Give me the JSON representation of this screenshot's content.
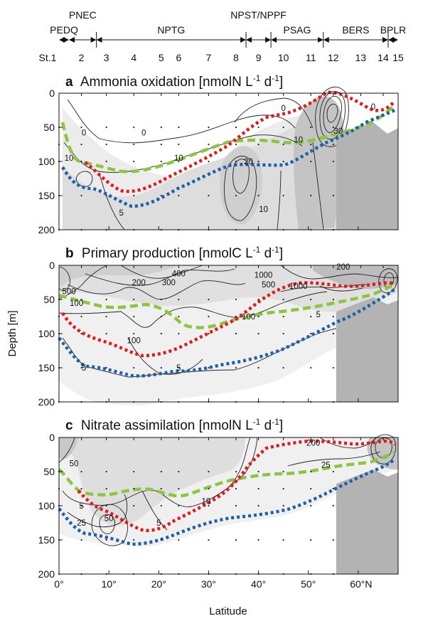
{
  "provinces": [
    {
      "name": "PEDQ",
      "from": 0,
      "to": 2
    },
    {
      "name": "PNEC",
      "from": 2,
      "to": 7.5
    },
    {
      "name": "NPTG",
      "from": 7.5,
      "to": 37.5
    },
    {
      "name": "NPST/NPPF",
      "from": 37.5,
      "to": 42.5
    },
    {
      "name": "PSAG",
      "from": 42.5,
      "to": 53
    },
    {
      "name": "BERS",
      "from": 53,
      "to": 66
    },
    {
      "name": "BPLR",
      "from": 66,
      "to": 68
    }
  ],
  "stations": [
    {
      "label": "St.1",
      "lat": 0
    },
    {
      "label": "2",
      "lat": 4.5
    },
    {
      "label": "3",
      "lat": 9.5
    },
    {
      "label": "4",
      "lat": 15
    },
    {
      "label": "5",
      "lat": 20.5
    },
    {
      "label": "6",
      "lat": 24
    },
    {
      "label": "7",
      "lat": 30
    },
    {
      "label": "8",
      "lat": 35.5
    },
    {
      "label": "9",
      "lat": 40
    },
    {
      "label": "10",
      "lat": 45
    },
    {
      "label": "11",
      "lat": 50.5
    },
    {
      "label": "12",
      "lat": 55
    },
    {
      "label": "13",
      "lat": 60.5
    },
    {
      "label": "14",
      "lat": 65
    },
    {
      "label": "15",
      "lat": 68
    }
  ],
  "colors": {
    "fill_light": "#f0f0f0",
    "fill_mid": "#dcdcdc",
    "fill_dark": "#bdbdbd",
    "land": "#b3b3b3",
    "green_line": "#8cc63f",
    "red_line": "#e31a1c",
    "blue_line": "#1f5fa8"
  },
  "chart_data": [
    {
      "type": "contour",
      "letter": "a",
      "title": "Ammonia oxidation [nmolN L",
      "title_sup1": "-1",
      "title_mid": " d",
      "title_sup2": "-1",
      "title_end": "]",
      "xlabel": "",
      "ylabel": "",
      "xlim": [
        0,
        68
      ],
      "ylim": [
        200,
        0
      ],
      "yticks": [
        "0",
        "50",
        "100",
        "150",
        "200"
      ],
      "contour_labels": [
        {
          "text": "0",
          "lat": 17,
          "depth": 58
        },
        {
          "text": "0",
          "lat": 45,
          "depth": 22
        },
        {
          "text": "0",
          "lat": 63,
          "depth": 20
        },
        {
          "text": "0",
          "lat": 5,
          "depth": 58
        },
        {
          "text": "10",
          "lat": 2,
          "depth": 95
        },
        {
          "text": "10",
          "lat": 24,
          "depth": 95
        },
        {
          "text": "10",
          "lat": 48,
          "depth": 68
        },
        {
          "text": "10",
          "lat": 41,
          "depth": 170
        },
        {
          "text": "20",
          "lat": 38,
          "depth": 100
        },
        {
          "text": "30",
          "lat": 56,
          "depth": 55
        },
        {
          "text": "5",
          "lat": 12.5,
          "depth": 175
        }
      ]
    },
    {
      "type": "contour",
      "letter": "b",
      "title": "Primary production [nmolC L",
      "title_sup1": "-1",
      "title_mid": " d",
      "title_sup2": "-1",
      "title_end": "]",
      "xlabel": "",
      "ylabel": "Depth [m]",
      "xlim": [
        0,
        68
      ],
      "ylim": [
        200,
        0
      ],
      "yticks": [
        "0",
        "50",
        "100",
        "150",
        "200"
      ],
      "contour_labels": [
        {
          "text": "400",
          "lat": 24,
          "depth": 12
        },
        {
          "text": "300",
          "lat": 22,
          "depth": 25
        },
        {
          "text": "200",
          "lat": 16,
          "depth": 25
        },
        {
          "text": "500",
          "lat": 2,
          "depth": 38
        },
        {
          "text": "100",
          "lat": 3.5,
          "depth": 55
        },
        {
          "text": "1000",
          "lat": 41,
          "depth": 14
        },
        {
          "text": "500",
          "lat": 42,
          "depth": 28
        },
        {
          "text": "1000",
          "lat": 48,
          "depth": 30
        },
        {
          "text": "200",
          "lat": 57,
          "depth": 2
        },
        {
          "text": "100",
          "lat": 38,
          "depth": 75
        },
        {
          "text": "100",
          "lat": 15,
          "depth": 110
        },
        {
          "text": "5",
          "lat": 52,
          "depth": 72
        },
        {
          "text": "5",
          "lat": 24,
          "depth": 150
        },
        {
          "text": "5",
          "lat": 5,
          "depth": 150
        }
      ]
    },
    {
      "type": "contour",
      "letter": "c",
      "title": "Nitrate assimilation [nmolN L",
      "title_sup1": "-1",
      "title_mid": " d",
      "title_sup2": "-1",
      "title_end": "]",
      "xlabel": "Latitude",
      "ylabel": "",
      "xlim": [
        0,
        68
      ],
      "ylim": [
        200,
        0
      ],
      "yticks": [
        "0",
        "50",
        "100",
        "150",
        "200"
      ],
      "xticks": [
        "0°",
        "10°",
        "20°",
        "30°",
        "40°",
        "50°",
        "60°N"
      ],
      "contour_labels": [
        {
          "text": "50",
          "lat": 3,
          "depth": 38
        },
        {
          "text": "5",
          "lat": 4.5,
          "depth": 100
        },
        {
          "text": "25",
          "lat": 4.5,
          "depth": 125
        },
        {
          "text": "50",
          "lat": 10,
          "depth": 118
        },
        {
          "text": "5",
          "lat": 20,
          "depth": 125
        },
        {
          "text": "10",
          "lat": 29.5,
          "depth": 93
        },
        {
          "text": "200",
          "lat": 51,
          "depth": 8
        },
        {
          "text": "25",
          "lat": 53.5,
          "depth": 40
        }
      ]
    }
  ]
}
